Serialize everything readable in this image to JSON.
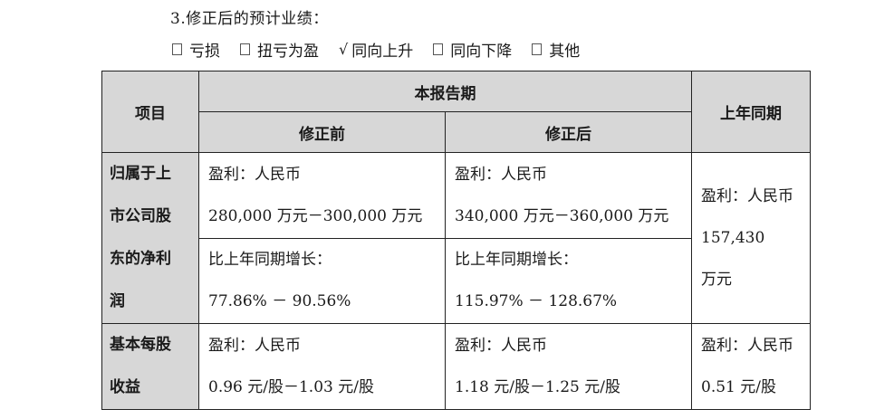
{
  "heading": "3.修正后的预计业绩：",
  "options": [
    {
      "label": "亏损",
      "checked": false
    },
    {
      "label": "扭亏为盈",
      "checked": false
    },
    {
      "label": "同向上升",
      "checked": true
    },
    {
      "label": "同向下降",
      "checked": false
    },
    {
      "label": "其他",
      "checked": false
    }
  ],
  "table": {
    "col_item": "项目",
    "col_current": "本报告期",
    "col_before": "修正前",
    "col_after": "修正后",
    "col_prior": "上年同期",
    "net_profit": {
      "label_lines": [
        "归属于上",
        "市公司股",
        "东的净利",
        "润"
      ],
      "before_profit_label": "盈利：人民币",
      "before_profit_value": "280,000 万元－300,000 万元",
      "before_growth_label": "比上年同期增长：",
      "before_growth_value": "77.86% － 90.56%",
      "after_profit_label": "盈利：人民币",
      "after_profit_value": "340,000 万元－360,000 万元",
      "after_growth_label": "比上年同期增长：",
      "after_growth_value": "115.97% － 128.67%",
      "prior_lines": [
        "盈利：人民币",
        "157,430",
        "万元"
      ]
    },
    "eps": {
      "label_lines": [
        "基本每股",
        "收益"
      ],
      "before_label": "盈利：人民币",
      "before_value": "0.96 元/股－1.03 元/股",
      "after_label": "盈利：人民币",
      "after_value": "1.18 元/股－1.25 元/股",
      "prior_label": "盈利：人民币",
      "prior_value": "0.51 元/股"
    }
  }
}
